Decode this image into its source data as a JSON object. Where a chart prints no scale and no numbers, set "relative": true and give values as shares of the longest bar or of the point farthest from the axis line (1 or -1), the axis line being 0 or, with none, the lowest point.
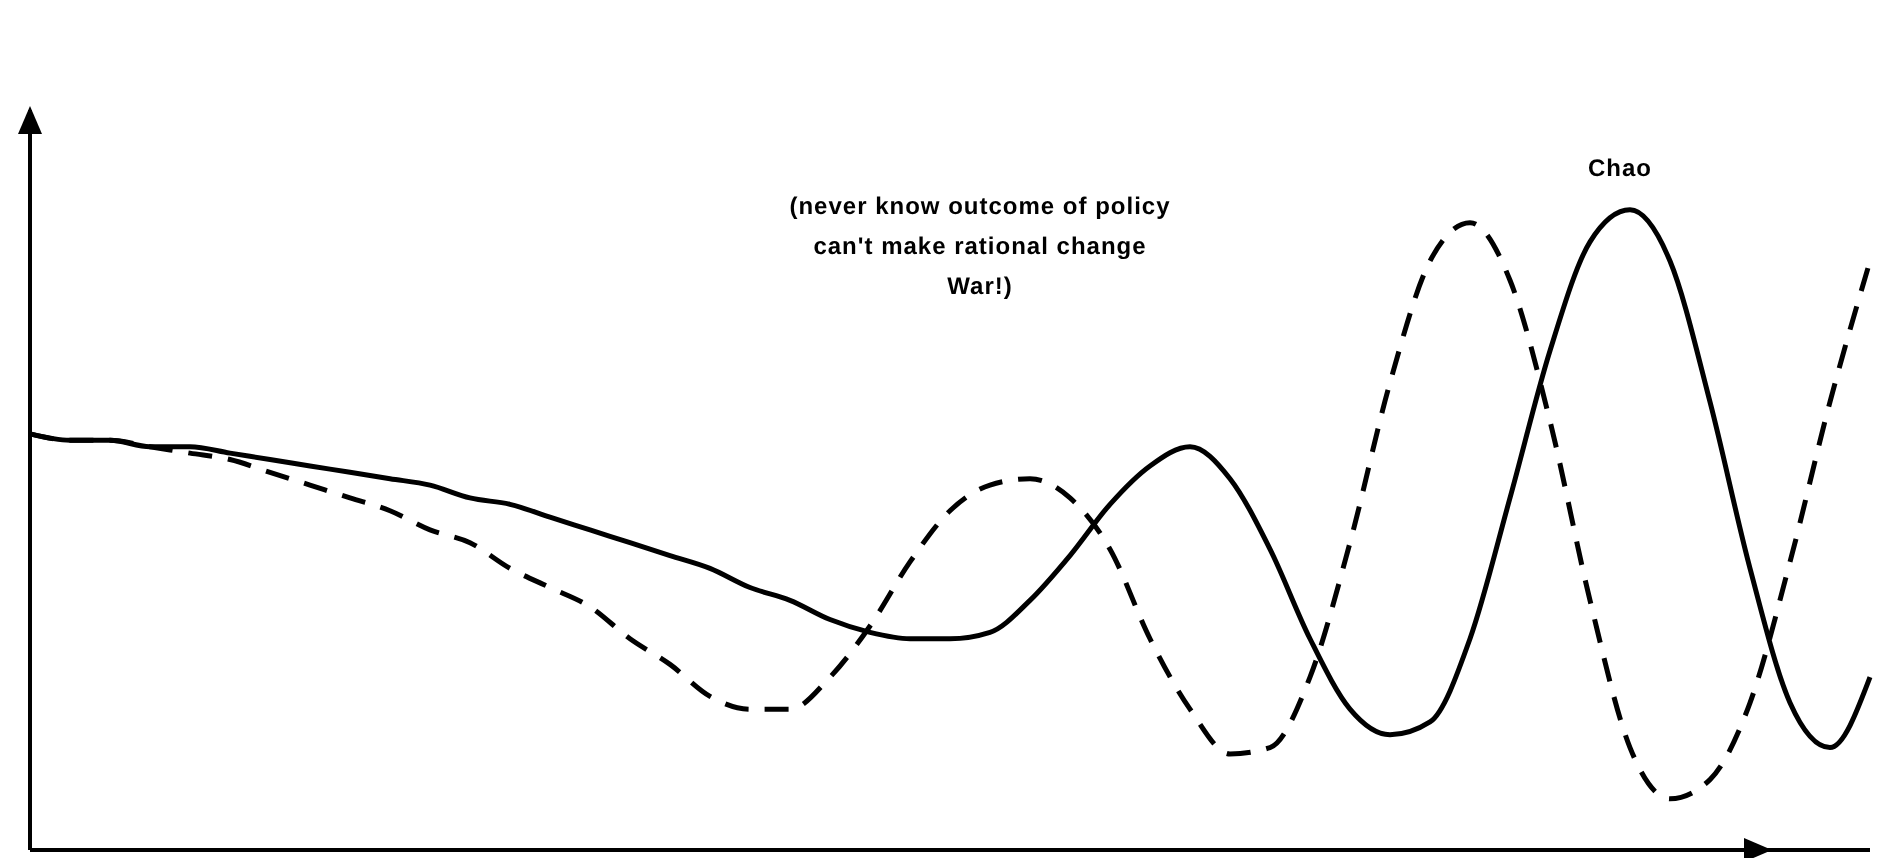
{
  "chart_data": {
    "type": "line",
    "relative": true,
    "categories": [
      null,
      null,
      null,
      null,
      null,
      null,
      null,
      null,
      null,
      null,
      null,
      null,
      null,
      null,
      null,
      null,
      null,
      null,
      null,
      null,
      null,
      null,
      null,
      null,
      null,
      null,
      null,
      null,
      null,
      null,
      null,
      null,
      null,
      null,
      null,
      null,
      null,
      null,
      null,
      null,
      null,
      null,
      null,
      null,
      null,
      null,
      null
    ],
    "series": [
      {
        "color": "#000000",
        "line_style": "solid",
        "values": [
          0.65,
          0.64,
          0.64,
          0.63,
          0.63,
          0.62,
          0.61,
          0.6,
          0.59,
          0.58,
          0.57,
          0.55,
          0.54,
          0.52,
          0.5,
          0.48,
          0.46,
          0.44,
          0.41,
          0.39,
          0.36,
          0.34,
          0.33,
          0.33,
          0.34,
          0.39,
          0.46,
          0.54,
          0.6,
          0.63,
          0.58,
          0.47,
          0.33,
          0.22,
          0.18,
          0.2,
          0.33,
          0.55,
          0.78,
          0.95,
          1.0,
          0.92,
          0.7,
          0.44,
          0.23,
          0.16,
          0.27
        ]
      },
      {
        "color": "#000000",
        "line_style": "dashed",
        "values": [
          0.65,
          0.64,
          0.64,
          0.63,
          0.62,
          0.61,
          0.59,
          0.57,
          0.55,
          0.53,
          0.5,
          0.48,
          0.44,
          0.41,
          0.38,
          0.33,
          0.29,
          0.24,
          0.22,
          0.22,
          0.27,
          0.35,
          0.45,
          0.53,
          0.57,
          0.58,
          0.55,
          0.47,
          0.33,
          0.22,
          0.15,
          0.16,
          0.27,
          0.48,
          0.73,
          0.92,
          0.98,
          0.89,
          0.67,
          0.39,
          0.16,
          0.08,
          0.11,
          0.23,
          0.45,
          0.7,
          0.92
        ]
      }
    ],
    "annotations": [
      "(never know outcome of policy\ncan't make rational change\nWar!)",
      "Chao"
    ],
    "grid": false,
    "legend": false,
    "marker": "none"
  }
}
